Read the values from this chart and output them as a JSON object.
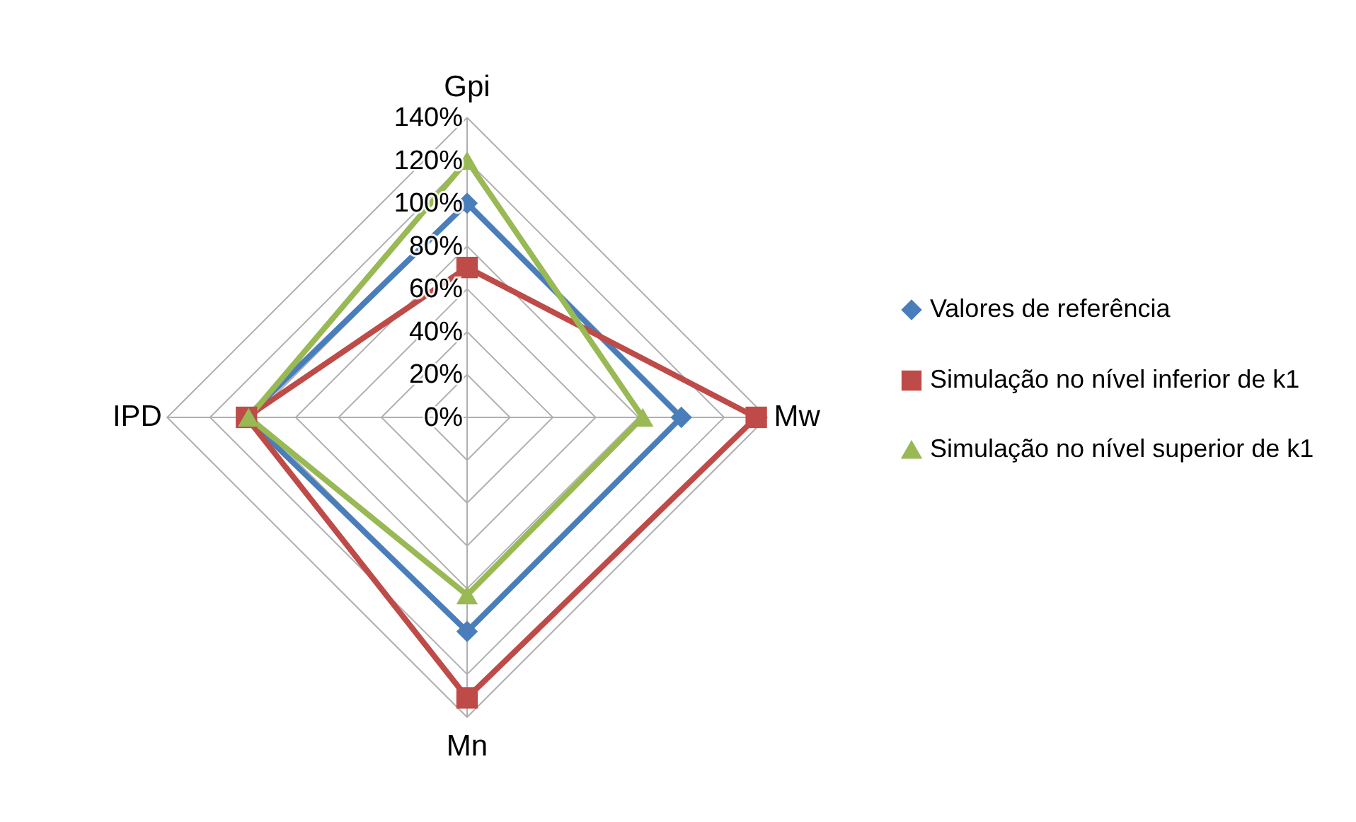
{
  "chart_data": {
    "type": "radar",
    "categories": [
      "Gpi",
      "Mw",
      "Mn",
      "IPD"
    ],
    "series": [
      {
        "name": "Valores de referência",
        "color": "#4a7ebb",
        "marker": "diamond",
        "values": [
          100,
          100,
          100,
          103
        ]
      },
      {
        "name": "Simulação no nível inferior de k1",
        "color": "#be4b48",
        "marker": "square",
        "values": [
          70,
          135,
          131,
          103
        ]
      },
      {
        "name": "Simulação no nível superior de k1",
        "color": "#98b954",
        "marker": "triangle",
        "values": [
          120,
          82,
          83,
          102
        ]
      }
    ],
    "ylim": [
      0,
      140
    ],
    "yticks": [
      {
        "value": 0,
        "label": "0%"
      },
      {
        "value": 20,
        "label": "20%"
      },
      {
        "value": 40,
        "label": "40%"
      },
      {
        "value": 60,
        "label": "60%"
      },
      {
        "value": 80,
        "label": "80%"
      },
      {
        "value": 100,
        "label": "100%"
      },
      {
        "value": 120,
        "label": "120%"
      },
      {
        "value": 140,
        "label": "140%"
      }
    ],
    "grid": true,
    "legend": "right"
  }
}
